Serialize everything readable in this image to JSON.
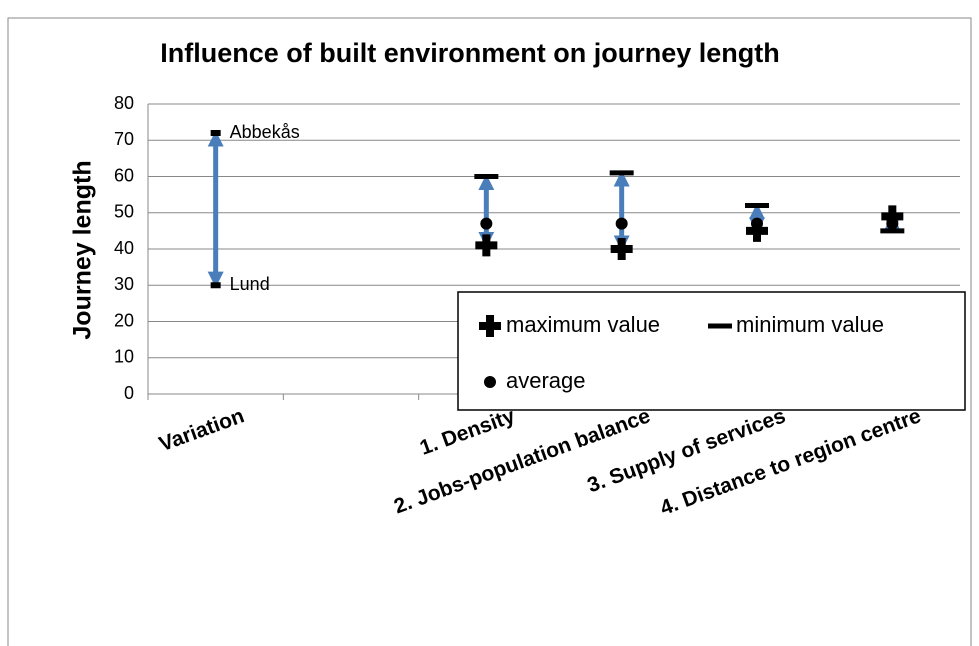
{
  "chart_data": {
    "type": "scatter",
    "title": "Influence of built environment on journey length",
    "y_label": "Journey length",
    "categories": [
      "Variation",
      null,
      "1. Density",
      "2. Jobs-population balance",
      "3. Supply of services",
      "4. Distance to region centre"
    ],
    "series": [
      {
        "name": "maximum value",
        "color": "#000000",
        "marker": "plus",
        "values": [
          null,
          null,
          41,
          40,
          45,
          49
        ]
      },
      {
        "name": "minimum value",
        "color": "#000000",
        "marker": "dash",
        "values": [
          null,
          null,
          60,
          61,
          52,
          45
        ]
      },
      {
        "name": "average",
        "color": "#000000",
        "marker": "dot",
        "values": [
          null,
          null,
          47,
          47,
          47,
          47
        ]
      }
    ],
    "annotations": [
      {
        "text": "Abbekås",
        "x": "Variation",
        "value": 72
      },
      {
        "text": "Lund",
        "x": "Variation",
        "value": 30
      }
    ],
    "arrow_color": "#4a7ebb",
    "ylim": [
      0,
      80
    ],
    "yticks": [
      0,
      10,
      20,
      30,
      40,
      50,
      60,
      70,
      80
    ],
    "grid": true,
    "legend": "lower right"
  }
}
